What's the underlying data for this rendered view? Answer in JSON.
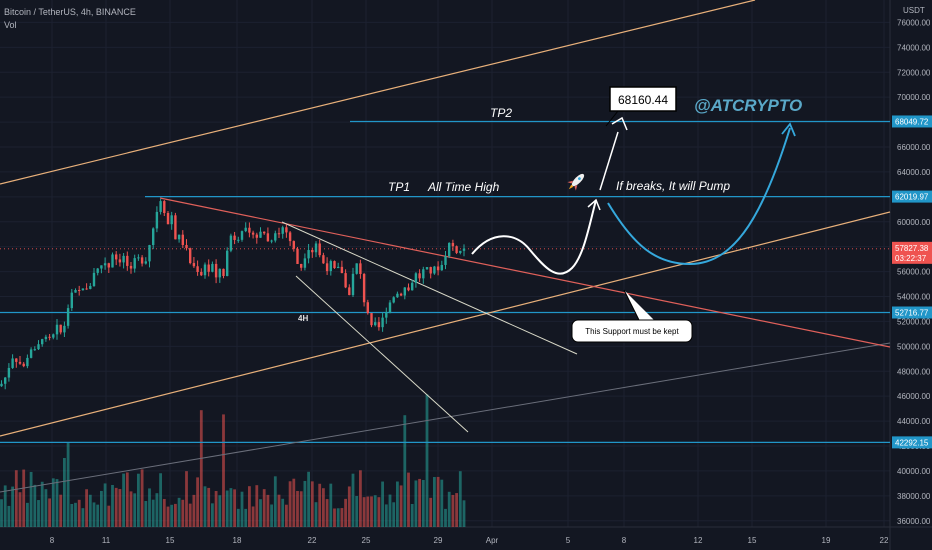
{
  "header": {
    "symbol": "Bitcoin / TetherUS, 4h, BINANCE",
    "volume_label": "Vol"
  },
  "currency": "USDT",
  "colors": {
    "background": "#131722",
    "grid": "#1c2130",
    "up": "#26a69a",
    "down": "#ef5350",
    "level": "#2196c8",
    "resistance": "#e0605a",
    "support": "#e8b07a",
    "annotation": "#ffffff",
    "watermark": "#5aa8c8"
  },
  "chart_data": {
    "type": "candlestick",
    "title": "Bitcoin / TetherUS, 4h, BINANCE",
    "x_tick_labels": [
      "8",
      "11",
      "15",
      "18",
      "22",
      "25",
      "29",
      "Apr",
      "5",
      "8",
      "12",
      "15",
      "19",
      "22"
    ],
    "y_tick_values": [
      36000,
      38000,
      40000,
      42000,
      44000,
      46000,
      48000,
      50000,
      52000,
      54000,
      56000,
      58000,
      60000,
      62000,
      64000,
      66000,
      68000,
      70000,
      72000,
      74000,
      76000
    ],
    "ylim": [
      35500,
      77800
    ],
    "last_price": 57827.38,
    "countdown": "03:22:37",
    "price_levels": [
      {
        "label": "68049.72",
        "value": 68049.72
      },
      {
        "label": "62019.97",
        "value": 62019.97
      },
      {
        "label": "52716.77",
        "value": 52716.77
      },
      {
        "label": "42292.15",
        "value": 42292.15
      }
    ],
    "price_path": [
      [
        0,
        46800
      ],
      [
        6,
        47600
      ],
      [
        12,
        49200
      ],
      [
        18,
        48800
      ],
      [
        24,
        48300
      ],
      [
        30,
        49900
      ],
      [
        36,
        49500
      ],
      [
        42,
        50800
      ],
      [
        48,
        50400
      ],
      [
        54,
        50900
      ],
      [
        58,
        51700
      ],
      [
        62,
        50800
      ],
      [
        66,
        52300
      ],
      [
        70,
        53900
      ],
      [
        74,
        54400
      ],
      [
        78,
        54200
      ],
      [
        82,
        54900
      ],
      [
        88,
        54300
      ],
      [
        94,
        56000
      ],
      [
        100,
        56300
      ],
      [
        104,
        57000
      ],
      [
        108,
        56100
      ],
      [
        112,
        57600
      ],
      [
        118,
        56800
      ],
      [
        124,
        57200
      ],
      [
        128,
        56300
      ],
      [
        132,
        55900
      ],
      [
        136,
        57300
      ],
      [
        140,
        56800
      ],
      [
        146,
        57000
      ],
      [
        150,
        58400
      ],
      [
        154,
        59800
      ],
      [
        158,
        61300
      ],
      [
        161,
        61900
      ],
      [
        164,
        61000
      ],
      [
        168,
        59800
      ],
      [
        172,
        60600
      ],
      [
        176,
        58400
      ],
      [
        180,
        58900
      ],
      [
        184,
        58000
      ],
      [
        188,
        57500
      ],
      [
        192,
        56100
      ],
      [
        196,
        56700
      ],
      [
        200,
        55300
      ],
      [
        204,
        56900
      ],
      [
        208,
        55900
      ],
      [
        212,
        56700
      ],
      [
        216,
        55300
      ],
      [
        220,
        56300
      ],
      [
        224,
        55700
      ],
      [
        228,
        58100
      ],
      [
        232,
        59200
      ],
      [
        236,
        58400
      ],
      [
        240,
        59100
      ],
      [
        244,
        59800
      ],
      [
        248,
        58600
      ],
      [
        252,
        59400
      ],
      [
        256,
        58700
      ],
      [
        260,
        59100
      ],
      [
        264,
        59200
      ],
      [
        268,
        58400
      ],
      [
        272,
        58700
      ],
      [
        276,
        59400
      ],
      [
        280,
        58900
      ],
      [
        284,
        59900
      ],
      [
        288,
        58700
      ],
      [
        292,
        58300
      ],
      [
        296,
        57000
      ],
      [
        300,
        56100
      ],
      [
        304,
        57100
      ],
      [
        308,
        58000
      ],
      [
        312,
        57600
      ],
      [
        316,
        58300
      ],
      [
        320,
        57200
      ],
      [
        324,
        56600
      ],
      [
        328,
        56200
      ],
      [
        332,
        56800
      ],
      [
        336,
        55700
      ],
      [
        340,
        56600
      ],
      [
        344,
        55300
      ],
      [
        348,
        53800
      ],
      [
        352,
        55400
      ],
      [
        356,
        56700
      ],
      [
        360,
        55900
      ],
      [
        364,
        53700
      ],
      [
        368,
        52700
      ],
      [
        372,
        51300
      ],
      [
        376,
        51800
      ],
      [
        380,
        51400
      ],
      [
        384,
        52600
      ],
      [
        388,
        53200
      ],
      [
        392,
        53900
      ],
      [
        396,
        54300
      ],
      [
        400,
        54100
      ],
      [
        404,
        54800
      ],
      [
        408,
        54400
      ],
      [
        412,
        55200
      ],
      [
        416,
        55800
      ],
      [
        420,
        55500
      ],
      [
        424,
        56200
      ],
      [
        428,
        56100
      ],
      [
        432,
        55900
      ],
      [
        436,
        56400
      ],
      [
        440,
        56200
      ],
      [
        444,
        56900
      ],
      [
        448,
        58300
      ],
      [
        452,
        58100
      ],
      [
        456,
        57700
      ],
      [
        460,
        57600
      ],
      [
        464,
        57900
      ],
      [
        467,
        57827.38
      ]
    ],
    "annotations": {
      "tp1": "TP1",
      "ath": "All Time High",
      "tp2": "TP2",
      "target_box": "68160.44",
      "handle": "@ATCRYPTO",
      "breakout": "If breaks, It will Pump",
      "support_note": "This Support must be kept",
      "timeframe": "4H",
      "rocket_icon": "rocket-icon"
    }
  }
}
